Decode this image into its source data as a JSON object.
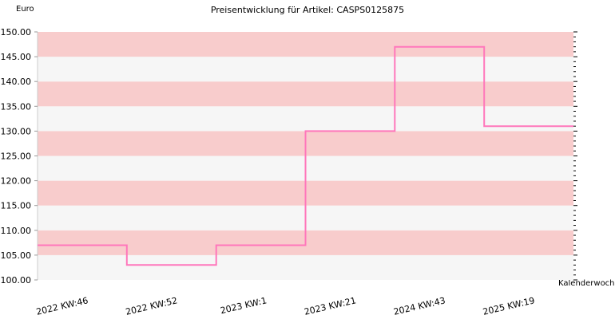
{
  "chart_data": {
    "type": "line",
    "step": true,
    "title": "Preisentwicklung für Artikel: CASPS0125875",
    "xlabel": "Kalenderwoche",
    "ylabel": "Euro",
    "ylim": [
      100,
      150
    ],
    "yticks": [
      "100.00",
      "105.00",
      "110.00",
      "115.00",
      "120.00",
      "125.00",
      "130.00",
      "135.00",
      "140.00",
      "145.00",
      "150.00"
    ],
    "x": [
      "2022 KW:46",
      "2022 KW:52",
      "2023 KW:1",
      "2023 KW:21",
      "2024 KW:43",
      "2025 KW:19"
    ],
    "series": [
      {
        "values": [
          107,
          103,
          107,
          130,
          147,
          131
        ]
      }
    ],
    "line_color": "#ff77bb",
    "band_colors": [
      "#f6f6f6",
      "#f8cccc"
    ],
    "grid": false
  }
}
